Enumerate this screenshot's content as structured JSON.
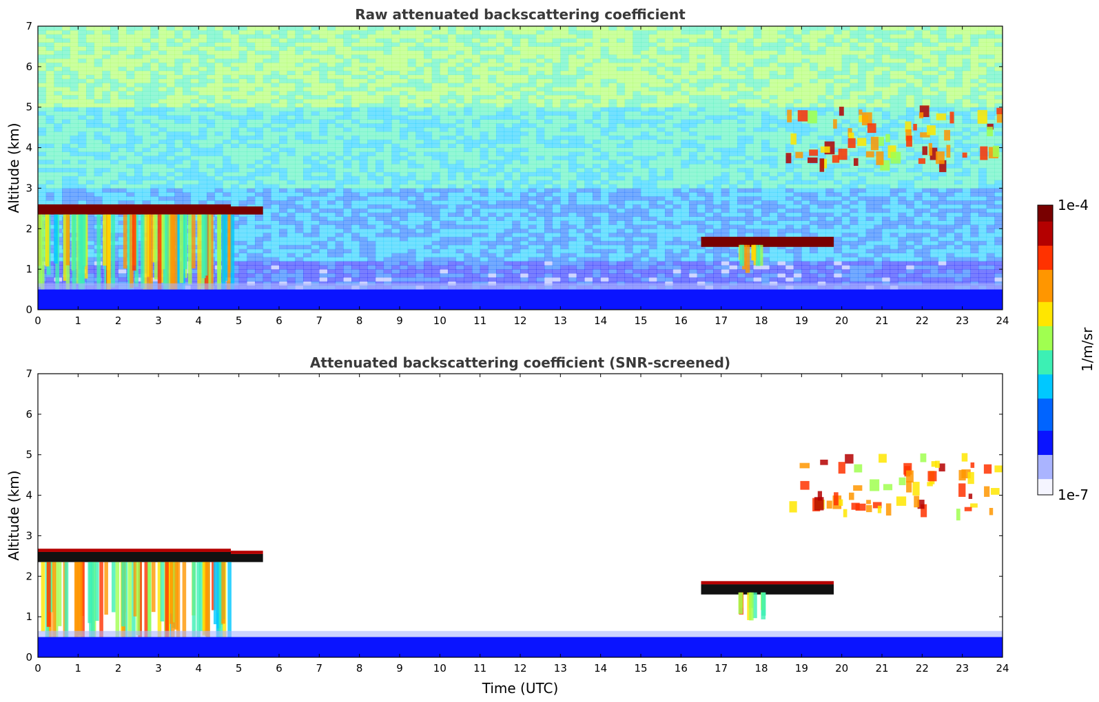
{
  "chart_data": [
    {
      "type": "heatmap",
      "title": "Raw attenuated backscattering coefficient",
      "xlabel": "",
      "ylabel": "Altitude (km)",
      "xlim": [
        0,
        24
      ],
      "ylim": [
        0,
        7
      ],
      "x_ticks": [
        "0",
        "1",
        "2",
        "3",
        "4",
        "5",
        "6",
        "7",
        "8",
        "9",
        "10",
        "11",
        "12",
        "13",
        "14",
        "15",
        "16",
        "17",
        "18",
        "19",
        "20",
        "21",
        "22",
        "23",
        "24"
      ],
      "y_ticks": [
        "0",
        "1",
        "2",
        "3",
        "4",
        "5",
        "6",
        "7"
      ],
      "features": [
        {
          "name": "cloud base layer",
          "x": [
            0,
            4.8
          ],
          "y": [
            2.35,
            2.6
          ],
          "level": "max"
        },
        {
          "name": "cloud layer tail",
          "x": [
            4.8,
            5.6
          ],
          "y": [
            2.35,
            2.55
          ],
          "level": "max"
        },
        {
          "name": "virga fall streaks",
          "x": [
            0,
            4.8
          ],
          "y": [
            0,
            2.35
          ],
          "level": "mid-high"
        },
        {
          "name": "boundary layer",
          "x": [
            0,
            24
          ],
          "y": [
            0,
            0.5
          ],
          "level": "low"
        },
        {
          "name": "mid cloud",
          "x": [
            16.5,
            19.8
          ],
          "y": [
            1.55,
            1.8
          ],
          "level": "max"
        },
        {
          "name": "mid cloud virga",
          "x": [
            17.3,
            18.0
          ],
          "y": [
            0.9,
            1.6
          ],
          "level": "mid"
        },
        {
          "name": "upper cloud",
          "x": [
            18.6,
            24
          ],
          "y": [
            3.5,
            4.9
          ],
          "level": "high"
        }
      ],
      "noise": "high"
    },
    {
      "type": "heatmap",
      "title": "Attenuated backscattering coefficient (SNR-screened)",
      "xlabel": "Time (UTC)",
      "ylabel": "Altitude (km)",
      "xlim": [
        0,
        24
      ],
      "ylim": [
        0,
        7
      ],
      "x_ticks": [
        "0",
        "1",
        "2",
        "3",
        "4",
        "5",
        "6",
        "7",
        "8",
        "9",
        "10",
        "11",
        "12",
        "13",
        "14",
        "15",
        "16",
        "17",
        "18",
        "19",
        "20",
        "21",
        "22",
        "23",
        "24"
      ],
      "y_ticks": [
        "0",
        "1",
        "2",
        "3",
        "4",
        "5",
        "6",
        "7"
      ],
      "features": [
        {
          "name": "cloud base layer",
          "x": [
            0,
            4.8
          ],
          "y": [
            2.35,
            2.6
          ],
          "level": "saturated"
        },
        {
          "name": "cloud layer tail",
          "x": [
            4.8,
            5.6
          ],
          "y": [
            2.35,
            2.55
          ],
          "level": "saturated"
        },
        {
          "name": "virga fall streaks",
          "x": [
            0,
            4.8
          ],
          "y": [
            0,
            2.35
          ],
          "level": "mid-high"
        },
        {
          "name": "boundary layer",
          "x": [
            0,
            24
          ],
          "y": [
            0,
            0.5
          ],
          "level": "low"
        },
        {
          "name": "mid cloud",
          "x": [
            16.5,
            19.8
          ],
          "y": [
            1.55,
            1.8
          ],
          "level": "saturated"
        },
        {
          "name": "mid cloud virga",
          "x": [
            17.3,
            18.0
          ],
          "y": [
            0.85,
            1.6
          ],
          "level": "mid"
        },
        {
          "name": "upper cloud",
          "x": [
            18.6,
            24
          ],
          "y": [
            3.5,
            4.9
          ],
          "level": "high"
        }
      ],
      "noise": "none"
    }
  ],
  "colorbar": {
    "max_label": "1e-4",
    "min_label": "1e-7",
    "unit_label": "1/m/sr",
    "colormap": [
      "#f5f5ff",
      "#aab4ff",
      "#0a14ff",
      "#0064ff",
      "#00c8ff",
      "#3cf0b4",
      "#a0ff50",
      "#ffe600",
      "#ff9600",
      "#ff3200",
      "#b40000",
      "#780000"
    ]
  }
}
